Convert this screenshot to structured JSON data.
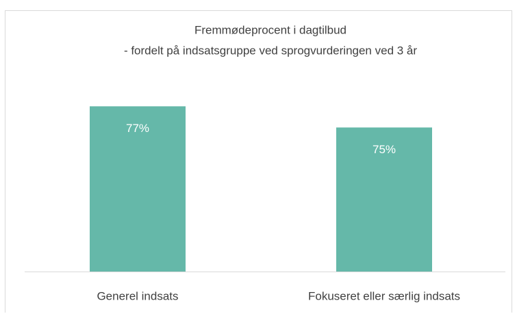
{
  "chart_data": {
    "type": "bar",
    "title": "Fremmødeprocent i dagtilbud",
    "subtitle": "- fordelt på indsatsgruppe ved sprogvurderingen ved 3 år",
    "categories": [
      "Generel indsats",
      "Fokuseret eller særlig indsats"
    ],
    "values": [
      77,
      75
    ],
    "value_labels": [
      "77%",
      "75%"
    ],
    "color": "#65b8a9",
    "ylim": [
      61.4,
      84
    ]
  }
}
